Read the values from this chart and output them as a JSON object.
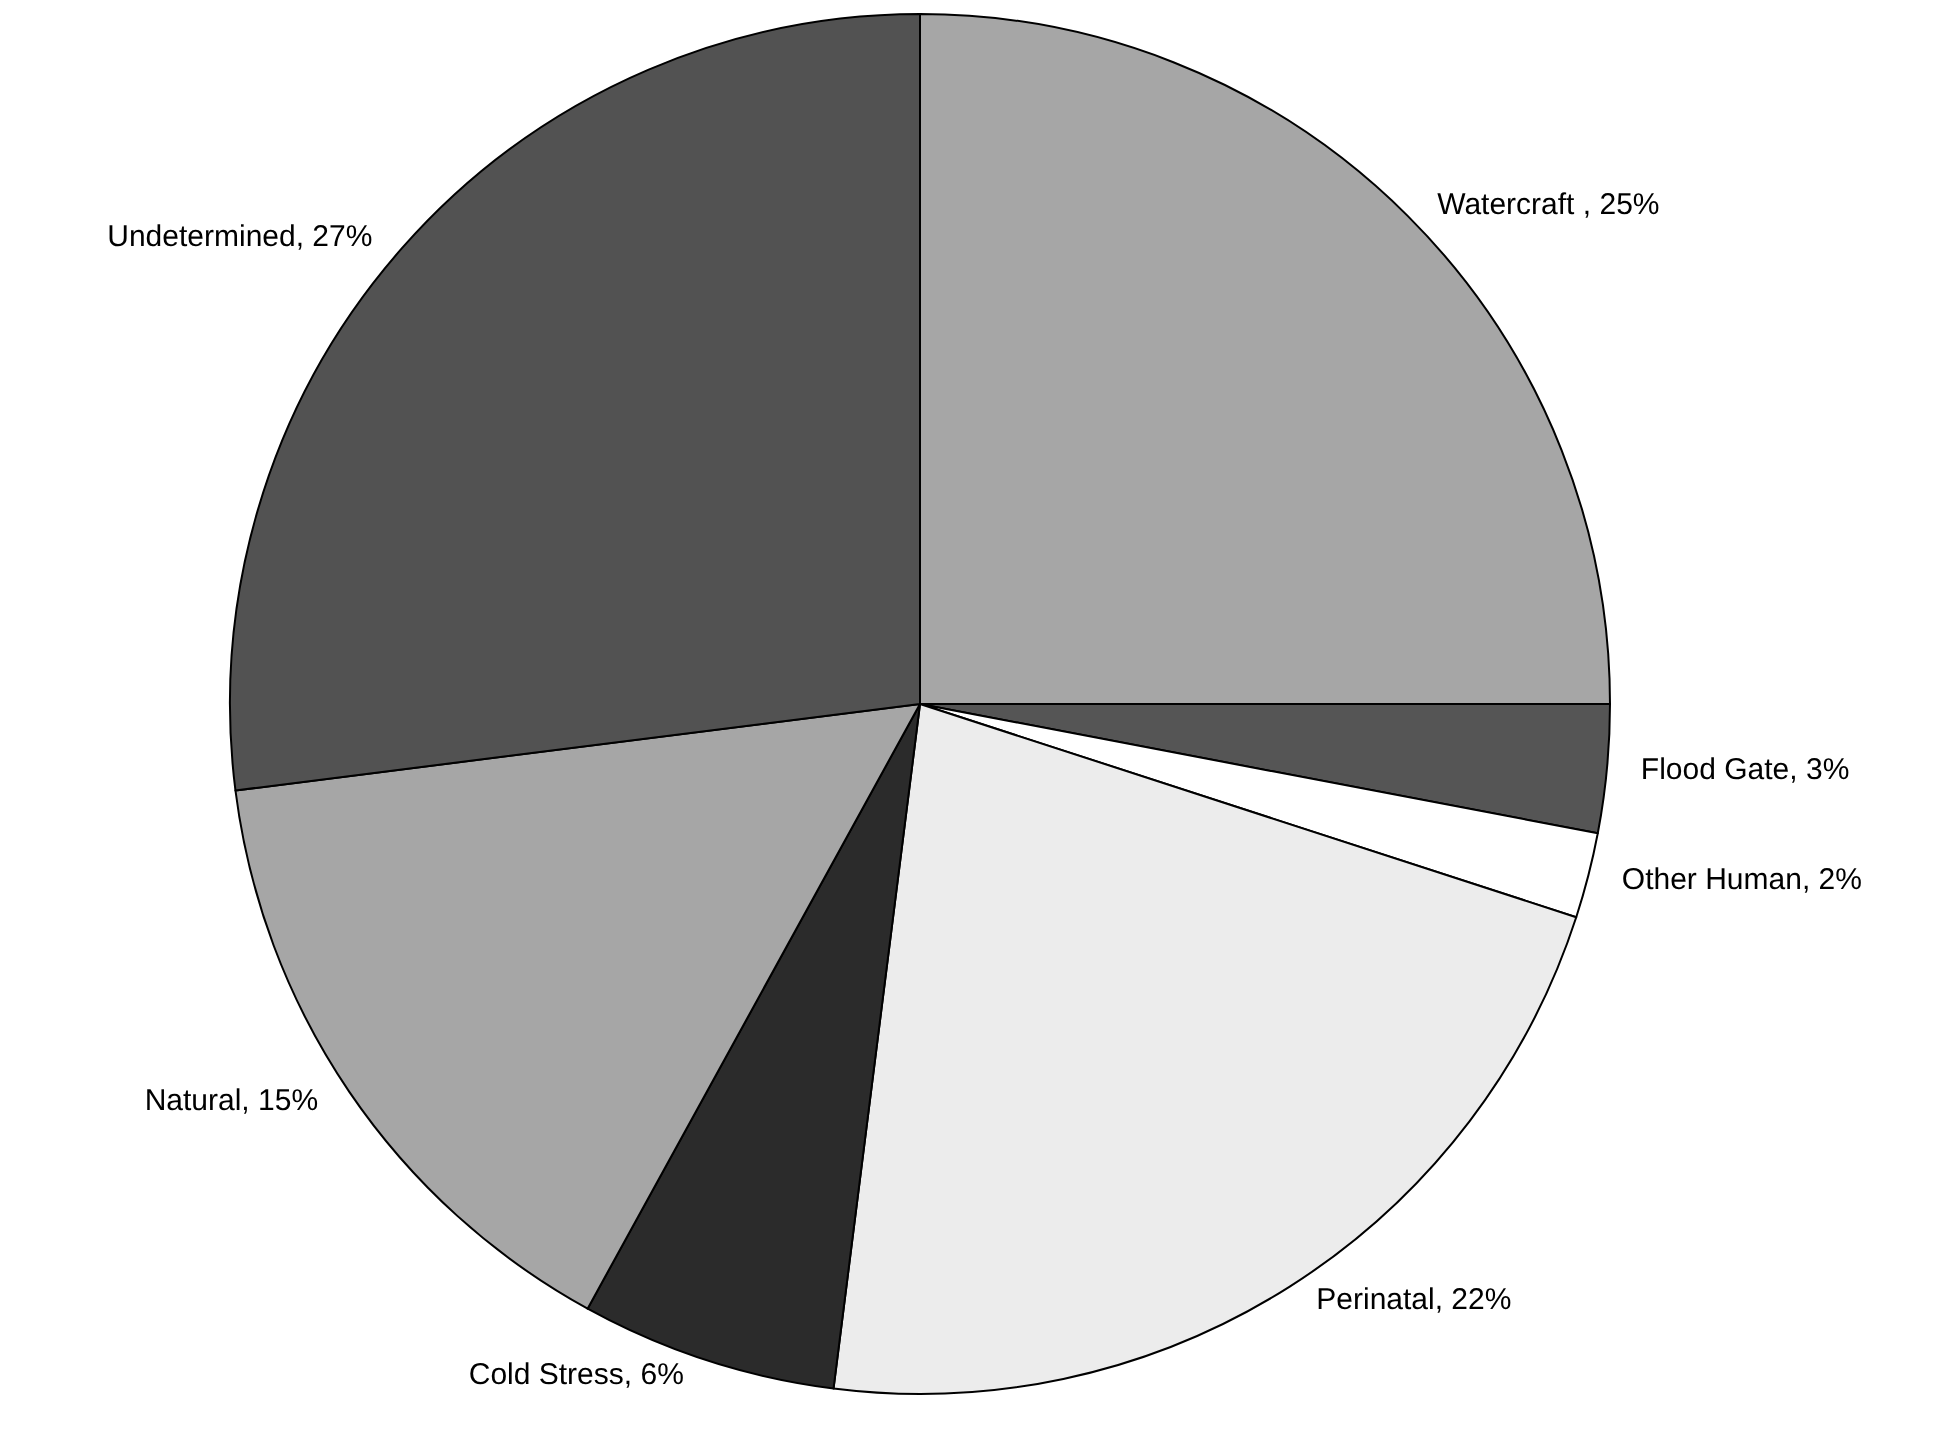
{
  "chart_data": {
    "type": "pie",
    "categories": [
      "Watercraft ",
      "Flood Gate",
      "Other Human",
      "Perinatal",
      "Cold Stress",
      "Natural",
      "Undetermined"
    ],
    "values": [
      25,
      3,
      2,
      22,
      6,
      15,
      27
    ],
    "value_labels": [
      "25%",
      "3%",
      "2%",
      "22%",
      "6%",
      "15%",
      "27%"
    ],
    "colors": [
      "#a6a6a6",
      "#555555",
      "#ffffff",
      "#ececec",
      "#2b2b2b",
      "#a6a6a6",
      "#525252"
    ],
    "legend": false
  }
}
